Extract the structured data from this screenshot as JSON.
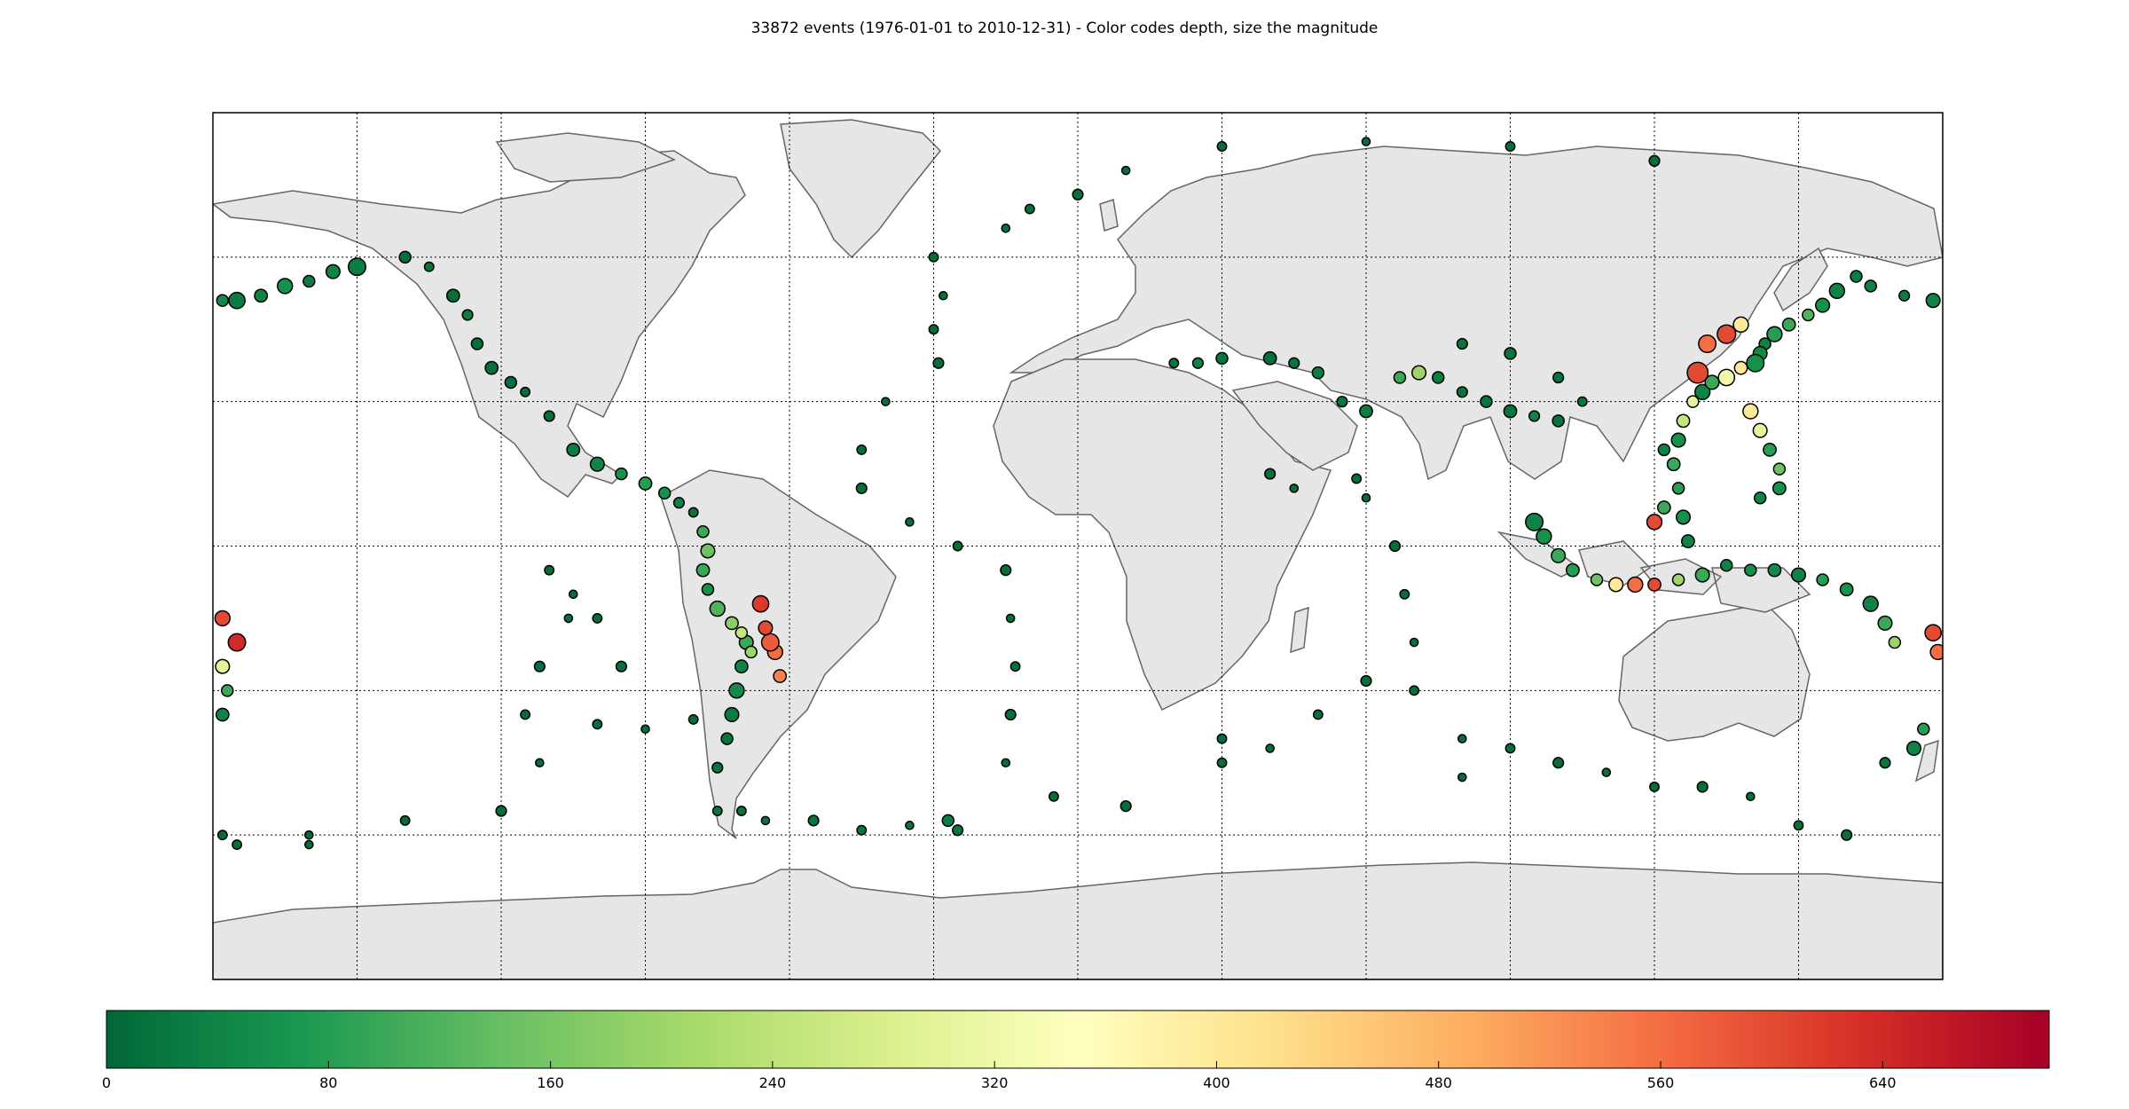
{
  "chart_data": {
    "type": "scatter",
    "title": "33872 events (1976-01-01 to 2010-12-31) - Color codes depth, size the magnitude",
    "projection": "equirectangular",
    "lon_range": [
      -180,
      180
    ],
    "lat_range": [
      -90,
      90
    ],
    "meridians_every_deg": 30,
    "parallels_every_deg": 30,
    "grid": true,
    "land_color": "#e6e6e6",
    "coastline_color": "#666666",
    "colorbar": {
      "colormap": "RdYlGn_r",
      "range": [
        0,
        700
      ],
      "ticks": [
        0,
        80,
        160,
        240,
        320,
        400,
        480,
        560,
        640
      ],
      "tick_labels": [
        "0",
        "80",
        "160",
        "240",
        "320",
        "400",
        "480",
        "560",
        "640"
      ],
      "placement": "bottom",
      "stops": [
        "#006837",
        "#1a9850",
        "#66bd63",
        "#a6d96a",
        "#d9ef8b",
        "#ffffbf",
        "#fee08b",
        "#fdae61",
        "#f46d43",
        "#d73027",
        "#a50026"
      ]
    },
    "series": [
      {
        "points": [
          [
            -150,
            58,
            30,
            6.5
          ],
          [
            -155,
            57,
            40,
            6.2
          ],
          [
            -160,
            55,
            30,
            6.0
          ],
          [
            -165,
            54,
            60,
            6.3
          ],
          [
            -170,
            52,
            40,
            6.1
          ],
          [
            -175,
            51,
            30,
            6.4
          ],
          [
            -178,
            51,
            50,
            6.0
          ],
          [
            178,
            51,
            40,
            6.2
          ],
          [
            172,
            52,
            30,
            5.9
          ],
          [
            165,
            54,
            40,
            6.0
          ],
          [
            -140,
            60,
            10,
            6.0
          ],
          [
            -135,
            58,
            20,
            5.8
          ],
          [
            -130,
            52,
            10,
            6.1
          ],
          [
            -127,
            48,
            30,
            5.9
          ],
          [
            -125,
            42,
            10,
            6.0
          ],
          [
            -122,
            37,
            10,
            6.1
          ],
          [
            -118,
            34,
            10,
            6.0
          ],
          [
            -115,
            32,
            10,
            5.8
          ],
          [
            -110,
            27,
            10,
            5.9
          ],
          [
            -105,
            20,
            30,
            6.1
          ],
          [
            -100,
            17,
            40,
            6.2
          ],
          [
            -95,
            15,
            60,
            6.0
          ],
          [
            -90,
            13,
            80,
            6.1
          ],
          [
            -86,
            11,
            60,
            6.0
          ],
          [
            -83,
            9,
            40,
            5.9
          ],
          [
            -80,
            7,
            20,
            5.8
          ],
          [
            -78,
            3,
            100,
            6.0
          ],
          [
            -77,
            -1,
            150,
            6.2
          ],
          [
            -78,
            -5,
            100,
            6.1
          ],
          [
            -77,
            -9,
            60,
            6.0
          ],
          [
            -75,
            -13,
            120,
            6.3
          ],
          [
            -72,
            -16,
            180,
            6.1
          ],
          [
            -70,
            -18,
            250,
            6.0
          ],
          [
            -69,
            -20,
            100,
            6.2
          ],
          [
            -68,
            -22,
            200,
            6.0
          ],
          [
            -70,
            -25,
            40,
            6.1
          ],
          [
            -71,
            -30,
            50,
            6.3
          ],
          [
            -72,
            -35,
            30,
            6.2
          ],
          [
            -73,
            -40,
            20,
            6.0
          ],
          [
            -75,
            -46,
            20,
            5.9
          ],
          [
            -64,
            -20,
            580,
            6.5
          ],
          [
            -63,
            -22,
            560,
            6.3
          ],
          [
            -66,
            -12,
            620,
            6.4
          ],
          [
            -65,
            -17,
            600,
            6.2
          ],
          [
            -62,
            -27,
            540,
            6.1
          ],
          [
            -75,
            -55,
            20,
            5.8
          ],
          [
            -65,
            -57,
            20,
            5.7
          ],
          [
            -55,
            -57,
            20,
            5.9
          ],
          [
            -45,
            -59,
            20,
            5.8
          ],
          [
            -35,
            -58,
            20,
            5.7
          ],
          [
            -27,
            -57,
            30,
            6.0
          ],
          [
            -25,
            -59,
            20,
            5.9
          ],
          [
            -30,
            60,
            10,
            5.8
          ],
          [
            -28,
            52,
            10,
            5.7
          ],
          [
            -30,
            45,
            10,
            5.8
          ],
          [
            -29,
            38,
            10,
            5.9
          ],
          [
            -40,
            30,
            10,
            5.7
          ],
          [
            -45,
            20,
            10,
            5.8
          ],
          [
            -45,
            12,
            10,
            5.9
          ],
          [
            -35,
            5,
            10,
            5.7
          ],
          [
            -25,
            0,
            10,
            5.8
          ],
          [
            -15,
            -5,
            10,
            5.9
          ],
          [
            -14,
            -15,
            10,
            5.7
          ],
          [
            -13,
            -25,
            10,
            5.8
          ],
          [
            -14,
            -35,
            10,
            5.9
          ],
          [
            -15,
            -45,
            10,
            5.7
          ],
          [
            -5,
            -52,
            10,
            5.8
          ],
          [
            10,
            -54,
            10,
            5.9
          ],
          [
            -15,
            66,
            10,
            5.7
          ],
          [
            -10,
            70,
            10,
            5.8
          ],
          [
            0,
            73,
            10,
            5.9
          ],
          [
            10,
            78,
            10,
            5.7
          ],
          [
            30,
            83,
            10,
            5.8
          ],
          [
            60,
            84,
            10,
            5.7
          ],
          [
            90,
            83,
            10,
            5.8
          ],
          [
            120,
            80,
            10,
            5.9
          ],
          [
            -110,
            -5,
            10,
            5.8
          ],
          [
            -106,
            -15,
            10,
            5.7
          ],
          [
            -112,
            -25,
            10,
            5.9
          ],
          [
            -115,
            -35,
            10,
            5.8
          ],
          [
            -112,
            -45,
            10,
            5.7
          ],
          [
            -120,
            -55,
            10,
            5.9
          ],
          [
            -140,
            -57,
            10,
            5.8
          ],
          [
            -160,
            -60,
            10,
            5.7
          ],
          [
            -175,
            -62,
            10,
            5.8
          ],
          [
            -100,
            -37,
            10,
            5.8
          ],
          [
            -90,
            -38,
            10,
            5.7
          ],
          [
            -80,
            -36,
            10,
            5.8
          ],
          [
            -95,
            -25,
            10,
            5.9
          ],
          [
            -100,
            -15,
            10,
            5.8
          ],
          [
            -105,
            -10,
            10,
            5.7
          ],
          [
            30,
            -40,
            10,
            5.8
          ],
          [
            40,
            -42,
            10,
            5.7
          ],
          [
            50,
            -35,
            10,
            5.8
          ],
          [
            60,
            -28,
            10,
            5.9
          ],
          [
            70,
            -20,
            10,
            5.7
          ],
          [
            68,
            -10,
            10,
            5.8
          ],
          [
            66,
            0,
            10,
            5.9
          ],
          [
            60,
            10,
            10,
            5.7
          ],
          [
            58,
            14,
            10,
            5.8
          ],
          [
            45,
            12,
            10,
            5.7
          ],
          [
            40,
            15,
            10,
            5.9
          ],
          [
            70,
            -30,
            10,
            5.8
          ],
          [
            80,
            -40,
            10,
            5.7
          ],
          [
            90,
            -42,
            10,
            5.8
          ],
          [
            100,
            -45,
            10,
            5.9
          ],
          [
            110,
            -47,
            10,
            5.7
          ],
          [
            120,
            -50,
            10,
            5.8
          ],
          [
            130,
            -50,
            10,
            5.9
          ],
          [
            140,
            -52,
            10,
            5.7
          ],
          [
            150,
            -58,
            10,
            5.8
          ],
          [
            160,
            -60,
            10,
            5.9
          ],
          [
            20,
            38,
            20,
            5.8
          ],
          [
            25,
            38,
            40,
            5.9
          ],
          [
            30,
            39,
            20,
            6.0
          ],
          [
            40,
            39,
            10,
            6.1
          ],
          [
            45,
            38,
            20,
            5.9
          ],
          [
            50,
            36,
            30,
            6.0
          ],
          [
            55,
            30,
            20,
            5.9
          ],
          [
            60,
            28,
            30,
            6.1
          ],
          [
            67,
            35,
            100,
            6.0
          ],
          [
            71,
            36,
            200,
            6.2
          ],
          [
            75,
            35,
            30,
            6.0
          ],
          [
            80,
            32,
            20,
            5.9
          ],
          [
            85,
            30,
            20,
            6.0
          ],
          [
            90,
            28,
            20,
            6.1
          ],
          [
            95,
            27,
            40,
            5.9
          ],
          [
            100,
            26,
            20,
            6.0
          ],
          [
            105,
            30,
            20,
            5.8
          ],
          [
            100,
            35,
            20,
            5.9
          ],
          [
            90,
            40,
            20,
            6.0
          ],
          [
            80,
            42,
            20,
            5.9
          ],
          [
            95,
            5,
            40,
            6.5
          ],
          [
            97,
            2,
            60,
            6.3
          ],
          [
            100,
            -2,
            100,
            6.2
          ],
          [
            103,
            -5,
            80,
            6.1
          ],
          [
            108,
            -7,
            150,
            6.0
          ],
          [
            112,
            -8,
            400,
            6.2
          ],
          [
            116,
            -8,
            560,
            6.3
          ],
          [
            120,
            -8,
            600,
            6.1
          ],
          [
            125,
            -7,
            200,
            6.0
          ],
          [
            130,
            -6,
            100,
            6.2
          ],
          [
            135,
            -4,
            40,
            6.0
          ],
          [
            120,
            5,
            600,
            6.3
          ],
          [
            122,
            8,
            100,
            6.1
          ],
          [
            125,
            12,
            80,
            6.0
          ],
          [
            126,
            6,
            60,
            6.2
          ],
          [
            127,
            1,
            40,
            6.1
          ],
          [
            140,
            -5,
            60,
            6.0
          ],
          [
            145,
            -5,
            50,
            6.1
          ],
          [
            150,
            -6,
            40,
            6.2
          ],
          [
            155,
            -7,
            80,
            6.0
          ],
          [
            160,
            -9,
            60,
            6.1
          ],
          [
            165,
            -12,
            40,
            6.3
          ],
          [
            168,
            -16,
            100,
            6.2
          ],
          [
            170,
            -20,
            200,
            6.0
          ],
          [
            178,
            -18,
            600,
            6.4
          ],
          [
            179,
            -22,
            560,
            6.3
          ],
          [
            -178,
            -25,
            300,
            6.2
          ],
          [
            -177,
            -30,
            100,
            6.0
          ],
          [
            -178,
            -35,
            40,
            6.1
          ],
          [
            176,
            -38,
            80,
            6.0
          ],
          [
            174,
            -42,
            40,
            6.2
          ],
          [
            168,
            -45,
            20,
            5.9
          ],
          [
            -175,
            -20,
            640,
            6.5
          ],
          [
            -178,
            -15,
            600,
            6.3
          ],
          [
            130,
            32,
            40,
            6.3
          ],
          [
            132,
            34,
            100,
            6.2
          ],
          [
            135,
            35,
            320,
            6.4
          ],
          [
            138,
            37,
            400,
            6.1
          ],
          [
            141,
            38,
            60,
            6.5
          ],
          [
            142,
            40,
            50,
            6.2
          ],
          [
            143,
            42,
            40,
            6.0
          ],
          [
            145,
            44,
            80,
            6.3
          ],
          [
            148,
            46,
            100,
            6.1
          ],
          [
            152,
            48,
            120,
            6.0
          ],
          [
            155,
            50,
            60,
            6.2
          ],
          [
            158,
            53,
            40,
            6.3
          ],
          [
            162,
            56,
            30,
            6.0
          ],
          [
            129,
            36,
            600,
            6.8
          ],
          [
            131,
            42,
            560,
            6.5
          ],
          [
            135,
            44,
            600,
            6.6
          ],
          [
            138,
            46,
            400,
            6.3
          ],
          [
            128,
            30,
            300,
            6.0
          ],
          [
            126,
            26,
            250,
            6.1
          ],
          [
            125,
            22,
            60,
            6.2
          ],
          [
            122,
            20,
            40,
            6.0
          ],
          [
            124,
            17,
            100,
            6.1
          ],
          [
            140,
            28,
            400,
            6.3
          ],
          [
            142,
            24,
            300,
            6.2
          ],
          [
            144,
            20,
            80,
            6.1
          ],
          [
            146,
            16,
            150,
            6.0
          ],
          [
            146,
            12,
            60,
            6.1
          ],
          [
            142,
            10,
            40,
            6.0
          ],
          [
            -178,
            -60,
            10,
            5.8
          ],
          [
            -160,
            -62,
            10,
            5.7
          ],
          [
            -70,
            -55,
            20,
            5.8
          ],
          [
            80,
            -48,
            10,
            5.7
          ],
          [
            30,
            -45,
            10,
            5.8
          ]
        ]
      }
    ]
  }
}
